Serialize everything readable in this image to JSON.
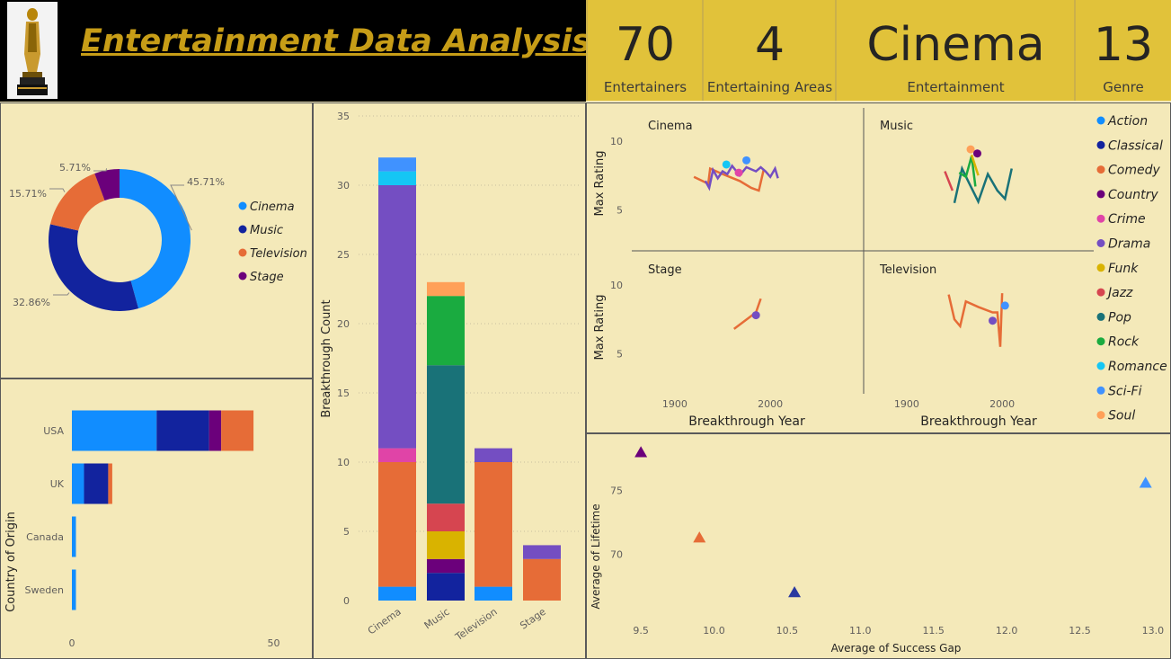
{
  "header": {
    "title": "Entertainment Data Analysis",
    "logo_icon": "oscar-statuette-icon"
  },
  "kpis": [
    {
      "value": "70",
      "label": "Entertainers"
    },
    {
      "value": "4",
      "label": "Entertaining Areas"
    },
    {
      "value": "Cinema",
      "label": "Entertainment"
    },
    {
      "value": "13",
      "label": "Genre"
    }
  ],
  "colors": {
    "Action": "#118dff",
    "Classical": "#12239e",
    "Comedy": "#e66c37",
    "Country": "#6b007b",
    "Crime": "#e044a7",
    "Drama": "#744ec2",
    "Funk": "#d9b300",
    "Jazz": "#d64550",
    "Pop": "#197278",
    "Rock": "#1aab40",
    "Romance": "#15c6f4",
    "Sci-Fi": "#4092ff",
    "Soul": "#ffa058"
  },
  "chart_data": [
    {
      "type": "pie",
      "variant": "donut",
      "slices": [
        {
          "label": "Cinema",
          "value": 45.71,
          "text": "45.71%",
          "color": "#118dff"
        },
        {
          "label": "Music",
          "value": 32.86,
          "text": "32.86%",
          "color": "#12239e"
        },
        {
          "label": "Television",
          "value": 15.71,
          "text": "15.71%",
          "color": "#e66c37"
        },
        {
          "label": "Stage",
          "value": 5.71,
          "text": "5.71%",
          "color": "#6b007b"
        }
      ],
      "legend": [
        "Cinema",
        "Music",
        "Television",
        "Stage"
      ],
      "legend_position": "right"
    },
    {
      "type": "bar",
      "orientation": "horizontal",
      "stacked": true,
      "ylabel": "Country of Origin",
      "categories": [
        "USA",
        "UK",
        "Canada",
        "Sweden"
      ],
      "series": [
        {
          "name": "Cinema",
          "values": [
            21,
            3,
            1,
            1
          ],
          "color": "#118dff"
        },
        {
          "name": "Music",
          "values": [
            13,
            6,
            0,
            0
          ],
          "color": "#12239e"
        },
        {
          "name": "Stage",
          "values": [
            3,
            0,
            0,
            0
          ],
          "color": "#6b007b"
        },
        {
          "name": "Television",
          "values": [
            8,
            1,
            0,
            0
          ],
          "color": "#e66c37"
        }
      ],
      "xticks": [
        0,
        50
      ],
      "xlim": [
        0,
        53
      ]
    },
    {
      "type": "bar",
      "stacked": true,
      "ylabel": "Breakthrough Count",
      "categories": [
        "Cinema",
        "Music",
        "Television",
        "Stage"
      ],
      "ylim": [
        0,
        35
      ],
      "yticks": [
        0,
        5,
        10,
        15,
        20,
        25,
        30,
        35
      ],
      "stacks": [
        [
          {
            "genre": "Action",
            "value": 1
          },
          {
            "genre": "Comedy",
            "value": 9
          },
          {
            "genre": "Crime",
            "value": 1
          },
          {
            "genre": "Drama",
            "value": 19
          },
          {
            "genre": "Romance",
            "value": 1
          },
          {
            "genre": "Sci-Fi",
            "value": 1
          }
        ],
        [
          {
            "genre": "Classical",
            "value": 2
          },
          {
            "genre": "Country",
            "value": 1
          },
          {
            "genre": "Funk",
            "value": 2
          },
          {
            "genre": "Jazz",
            "value": 2
          },
          {
            "genre": "Pop",
            "value": 10
          },
          {
            "genre": "Rock",
            "value": 5
          },
          {
            "genre": "Soul",
            "value": 1
          }
        ],
        [
          {
            "genre": "Action",
            "value": 1
          },
          {
            "genre": "Comedy",
            "value": 9
          },
          {
            "genre": "Drama",
            "value": 1
          }
        ],
        [
          {
            "genre": "Comedy",
            "value": 3
          },
          {
            "genre": "Drama",
            "value": 1
          }
        ]
      ]
    },
    {
      "type": "line",
      "small_multiples": true,
      "ylabel": "Max Rating",
      "xlabel": "Breakthrough Year",
      "xlim": [
        1870,
        2030
      ],
      "ylim": [
        3,
        11.5
      ],
      "xticks": [
        1900,
        2000
      ],
      "yticks": [
        5,
        10
      ],
      "legend": [
        "Action",
        "Classical",
        "Comedy",
        "Country",
        "Crime",
        "Drama",
        "Funk",
        "Jazz",
        "Pop",
        "Rock",
        "Romance",
        "Sci-Fi",
        "Soul"
      ],
      "legend_position": "right",
      "panels": [
        {
          "title": "Cinema",
          "lines": [
            {
              "genre": "Comedy",
              "points": [
                [
                  1920,
                  7.4
                ],
                [
                  1935,
                  6.9
                ],
                [
                  1937,
                  8.0
                ],
                [
                  1950,
                  7.6
                ],
                [
                  1968,
                  7.1
                ],
                [
                  1980,
                  6.6
                ],
                [
                  1988,
                  6.4
                ],
                [
                  1993,
                  7.9
                ]
              ]
            },
            {
              "genre": "Drama",
              "points": [
                [
                  1932,
                  7.1
                ],
                [
                  1936,
                  6.6
                ],
                [
                  1940,
                  7.9
                ],
                [
                  1945,
                  7.3
                ],
                [
                  1950,
                  7.8
                ],
                [
                  1955,
                  7.6
                ],
                [
                  1960,
                  8.2
                ],
                [
                  1968,
                  7.5
                ],
                [
                  1975,
                  8.1
                ],
                [
                  1985,
                  7.8
                ],
                [
                  1990,
                  8.1
                ],
                [
                  1995,
                  7.8
                ],
                [
                  2000,
                  7.4
                ],
                [
                  2005,
                  8.0
                ],
                [
                  2008,
                  7.3
                ]
              ]
            }
          ],
          "points": [
            {
              "genre": "Romance",
              "x": 1954,
              "y": 8.3
            },
            {
              "genre": "Crime",
              "x": 1967,
              "y": 7.7
            },
            {
              "genre": "Sci-Fi",
              "x": 1975,
              "y": 8.6
            }
          ]
        },
        {
          "title": "Music",
          "lines": [
            {
              "genre": "Jazz",
              "points": [
                [
                  1940,
                  7.8
                ],
                [
                  1948,
                  6.4
                ]
              ]
            },
            {
              "genre": "Pop",
              "points": [
                [
                  1950,
                  5.5
                ],
                [
                  1958,
                  8.0
                ],
                [
                  1965,
                  7.0
                ],
                [
                  1975,
                  5.6
                ],
                [
                  1985,
                  7.6
                ],
                [
                  1995,
                  6.4
                ],
                [
                  2003,
                  5.8
                ],
                [
                  2010,
                  8.0
                ]
              ]
            },
            {
              "genre": "Rock",
              "points": [
                [
                  1955,
                  7.7
                ],
                [
                  1962,
                  7.4
                ],
                [
                  1968,
                  8.9
                ],
                [
                  1972,
                  6.7
                ]
              ]
            },
            {
              "genre": "Funk",
              "points": [
                [
                  1968,
                  9.0
                ],
                [
                  1975,
                  7.5
                ]
              ]
            }
          ],
          "points": [
            {
              "genre": "Soul",
              "x": 1967,
              "y": 9.4
            },
            {
              "genre": "Country",
              "x": 1974,
              "y": 9.1
            }
          ]
        },
        {
          "title": "Stage",
          "lines": [
            {
              "genre": "Comedy",
              "points": [
                [
                  1962,
                  6.8
                ],
                [
                  1985,
                  8.0
                ],
                [
                  1990,
                  9.0
                ]
              ]
            }
          ],
          "points": [
            {
              "genre": "Drama",
              "x": 1985,
              "y": 7.8
            }
          ]
        },
        {
          "title": "Television",
          "lines": [
            {
              "genre": "Comedy",
              "points": [
                [
                  1944,
                  9.3
                ],
                [
                  1950,
                  7.5
                ],
                [
                  1956,
                  7.0
                ],
                [
                  1962,
                  8.8
                ],
                [
                  1975,
                  8.4
                ],
                [
                  1990,
                  8.0
                ],
                [
                  1995,
                  8.0
                ],
                [
                  1998,
                  5.5
                ],
                [
                  2000,
                  9.4
                ]
              ]
            }
          ],
          "points": [
            {
              "genre": "Drama",
              "x": 1990,
              "y": 7.4
            },
            {
              "genre": "Sci-Fi",
              "x": 2003,
              "y": 8.5
            }
          ]
        }
      ]
    },
    {
      "type": "scatter",
      "xlabel": "Average of Success Gap",
      "ylabel": "Average of Lifetime",
      "xlim": [
        9.45,
        13.05
      ],
      "ylim": [
        65.8,
        78.3
      ],
      "xticks": [
        9.5,
        10.0,
        10.5,
        11.0,
        11.5,
        12.0,
        12.5,
        13.0
      ],
      "yticks": [
        70,
        75
      ],
      "points": [
        {
          "series": "Stage",
          "x": 9.5,
          "y": 78.0,
          "marker": "triangle"
        },
        {
          "series": "Television",
          "x": 9.9,
          "y": 71.3,
          "marker": "triangle"
        },
        {
          "series": "Music",
          "x": 10.55,
          "y": 67.0,
          "marker": "triangle"
        },
        {
          "series": "Cinema",
          "x": 12.95,
          "y": 75.6,
          "marker": "triangle"
        }
      ]
    }
  ]
}
